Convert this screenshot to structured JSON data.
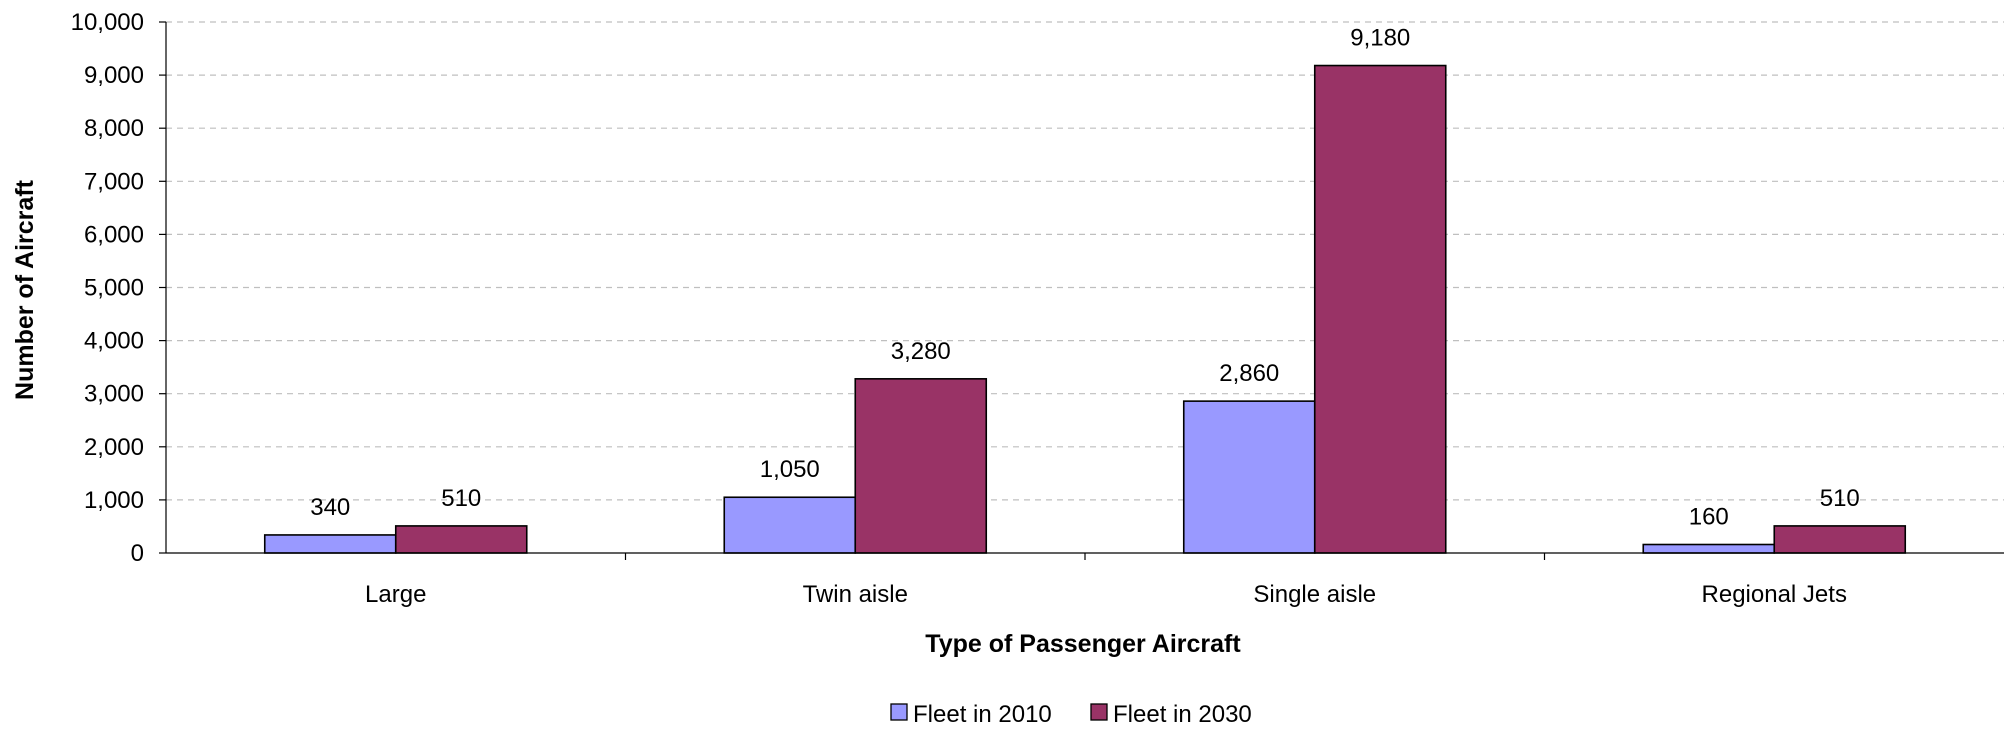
{
  "chart_data": {
    "type": "bar",
    "title": "",
    "xlabel": "Type of Passenger Aircraft",
    "ylabel": "Number of Aircraft",
    "categories": [
      "Large",
      "Twin aisle",
      "Single aisle",
      "Regional Jets"
    ],
    "series": [
      {
        "name": "Fleet in 2010",
        "values": [
          340,
          1050,
          2860,
          160
        ],
        "color": "#9999ff"
      },
      {
        "name": "Fleet in 2030",
        "values": [
          510,
          3280,
          9180,
          510
        ],
        "color": "#993366"
      }
    ],
    "data_labels": [
      [
        "340",
        "1,050",
        "2,860",
        "160"
      ],
      [
        "510",
        "3,280",
        "9,180",
        "510"
      ]
    ],
    "ylim": [
      0,
      10000
    ],
    "y_ticks": [
      0,
      1000,
      2000,
      3000,
      4000,
      5000,
      6000,
      7000,
      8000,
      9000,
      10000
    ],
    "y_tick_labels": [
      "0",
      "1,000",
      "2,000",
      "3,000",
      "4,000",
      "5,000",
      "6,000",
      "7,000",
      "8,000",
      "9,000",
      "10,000"
    ],
    "grid": true,
    "legend_position": "bottom"
  }
}
